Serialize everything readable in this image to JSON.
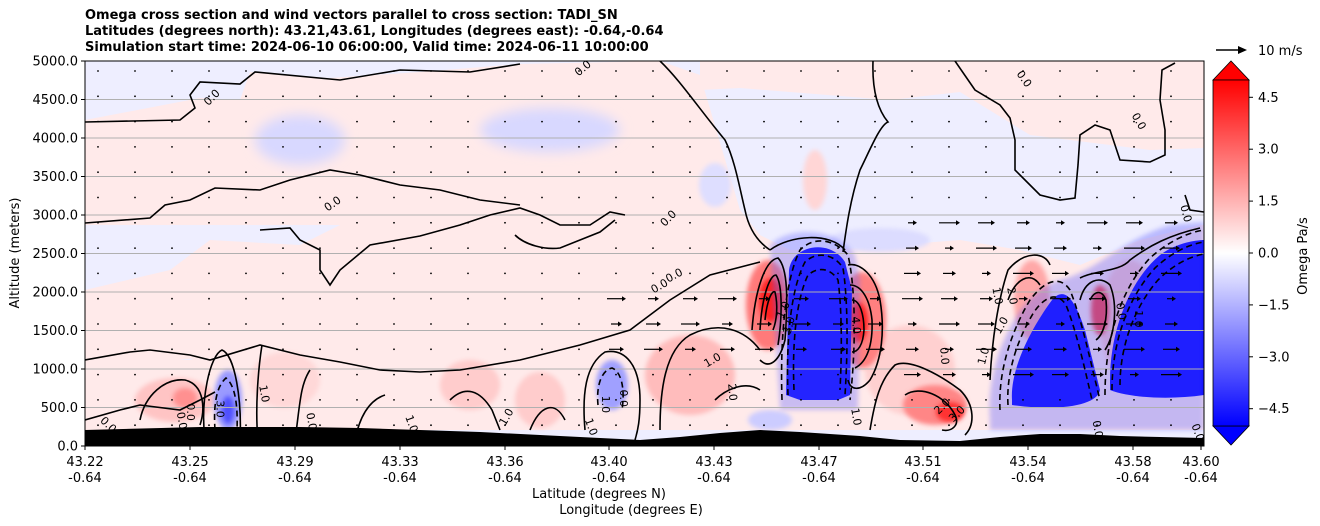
{
  "chart_data": {
    "type": "heatmap",
    "title_lines": [
      "Omega cross section and wind vectors parallel to cross section: TADI_SN",
      "Latitudes (degrees north): 43.21,43.61, Longitudes (degrees east): -0.64,-0.64",
      "Simulation start time: 2024-06-10 06:00:00, Valid time: 2024-06-11 10:00:00"
    ],
    "xlabel": "Latitude (degrees N)",
    "xlabel2": "Longitude (degrees E)",
    "ylabel": "Altitude (meters)",
    "ylim": [
      0,
      5000
    ],
    "yticks": [
      "0.0",
      "500.0",
      "1000.0",
      "1500.0",
      "2000.0",
      "2500.0",
      "3000.0",
      "3500.0",
      "4000.0",
      "4500.0",
      "5000.0"
    ],
    "xlim": [
      43.22,
      43.6
    ],
    "xticks": [
      {
        "lat": "43.22",
        "lon": "-0.64"
      },
      {
        "lat": "43.25",
        "lon": "-0.64"
      },
      {
        "lat": "43.29",
        "lon": "-0.64"
      },
      {
        "lat": "43.33",
        "lon": "-0.64"
      },
      {
        "lat": "43.36",
        "lon": "-0.64"
      },
      {
        "lat": "43.40",
        "lon": "-0.64"
      },
      {
        "lat": "43.43",
        "lon": "-0.64"
      },
      {
        "lat": "43.47",
        "lon": "-0.64"
      },
      {
        "lat": "43.51",
        "lon": "-0.64"
      },
      {
        "lat": "43.54",
        "lon": "-0.64"
      },
      {
        "lat": "43.58",
        "lon": "-0.64"
      },
      {
        "lat": "43.60",
        "lon": "-0.64"
      }
    ],
    "grid": "horizontal",
    "colorbar": {
      "label": "Omega Pa/s",
      "range": [
        -5,
        5
      ],
      "ticks": [
        "4.5",
        "3.0",
        "1.5",
        "0.0",
        "−1.5",
        "−3.0",
        "−4.5"
      ],
      "extend": "both",
      "colors": {
        "negative": "#0000ff",
        "zero": "#ffffff",
        "positive": "#ff0000"
      }
    },
    "quiver_key": "10 m/s",
    "terrain_color": "#000000",
    "contour_labels": [
      {
        "text": "0.0",
        "x": 43.263,
        "y": 4530,
        "rot": -45
      },
      {
        "text": "0.0",
        "x": 43.389,
        "y": 4910,
        "rot": -40
      },
      {
        "text": "0.0",
        "x": 43.539,
        "y": 4770,
        "rot": 55
      },
      {
        "text": "0.0",
        "x": 43.578,
        "y": 4220,
        "rot": 60
      },
      {
        "text": "0.0",
        "x": 43.304,
        "y": 3150,
        "rot": -35
      },
      {
        "text": "0.0",
        "x": 43.418,
        "y": 2960,
        "rot": -45
      },
      {
        "text": "0.0",
        "x": 43.594,
        "y": 3020,
        "rot": 75
      },
      {
        "text": "0.0",
        "x": 43.42,
        "y": 2220,
        "rot": -28
      },
      {
        "text": "0.0",
        "x": 43.415,
        "y": 2080,
        "rot": -30
      },
      {
        "text": "1.0",
        "x": 43.457,
        "y": 1770,
        "rot": -65
      },
      {
        "text": "3.0",
        "x": 43.459,
        "y": 1570,
        "rot": -75
      },
      {
        "text": "4.0",
        "x": 43.482,
        "y": 1570,
        "rot": 85
      },
      {
        "text": "1.0",
        "x": 43.433,
        "y": 1120,
        "rot": -30
      },
      {
        "text": "2.0",
        "x": 43.44,
        "y": 700,
        "rot": 85
      },
      {
        "text": "2.0",
        "x": 43.511,
        "y": 520,
        "rot": -45
      },
      {
        "text": "3.0",
        "x": 43.516,
        "y": 420,
        "rot": -45
      },
      {
        "text": "1.0",
        "x": 43.482,
        "y": 380,
        "rot": 80
      },
      {
        "text": "0.0",
        "x": 43.512,
        "y": 1170,
        "rot": 85
      },
      {
        "text": "1.0",
        "x": 43.53,
        "y": 1950,
        "rot": 80
      },
      {
        "text": "2.0",
        "x": 43.535,
        "y": 1950,
        "rot": 80
      },
      {
        "text": "1.0",
        "x": 43.531,
        "y": 1570,
        "rot": -60
      },
      {
        "text": "1.0",
        "x": 43.525,
        "y": 1170,
        "rot": -75
      },
      {
        "text": "0.0",
        "x": 43.572,
        "y": 1750,
        "rot": 80
      },
      {
        "text": "1.0",
        "x": 43.578,
        "y": 1650,
        "rot": 90
      },
      {
        "text": "0.0",
        "x": 43.256,
        "y": 440,
        "rot": 90
      },
      {
        "text": "3.0",
        "x": 43.266,
        "y": 480,
        "rot": 90
      },
      {
        "text": "1.0",
        "x": 43.281,
        "y": 680,
        "rot": 80
      },
      {
        "text": "0.0",
        "x": 43.297,
        "y": 320,
        "rot": 80
      },
      {
        "text": "0.0",
        "x": 43.253,
        "y": 330,
        "rot": 80
      },
      {
        "text": "0.0",
        "x": 43.228,
        "y": 280,
        "rot": 45
      },
      {
        "text": "1.0",
        "x": 43.331,
        "y": 290,
        "rot": 70
      },
      {
        "text": "1.0",
        "x": 43.363,
        "y": 380,
        "rot": -60
      },
      {
        "text": "1.0",
        "x": 43.392,
        "y": 250,
        "rot": 70
      },
      {
        "text": "0.0",
        "x": 43.403,
        "y": 620,
        "rot": 90
      },
      {
        "text": "1.0",
        "x": 43.397,
        "y": 540,
        "rot": 90
      },
      {
        "text": "0.0",
        "x": 43.564,
        "y": 220,
        "rot": 80
      },
      {
        "text": "0.0",
        "x": 43.598,
        "y": 180,
        "rot": 70
      }
    ]
  }
}
